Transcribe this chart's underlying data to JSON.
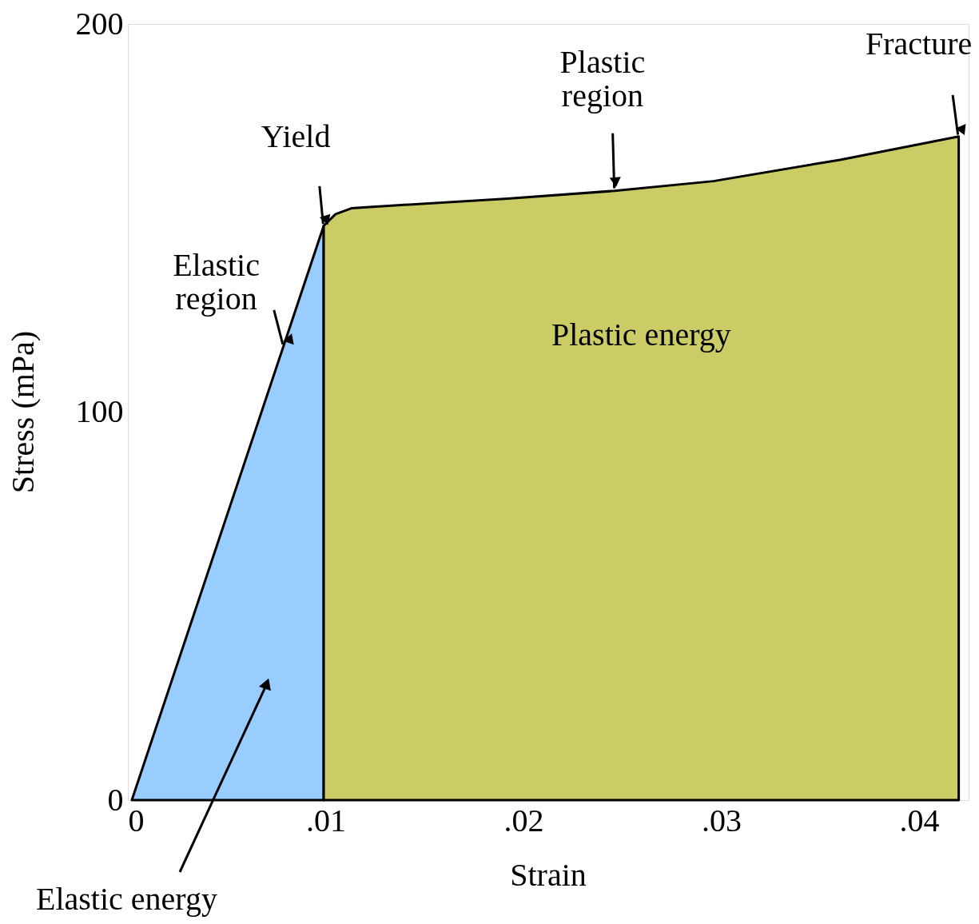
{
  "chart_data": {
    "type": "area",
    "xlabel": "Strain",
    "ylabel": "Stress (mPa)",
    "xlim": [
      0,
      0.0425
    ],
    "ylim": [
      0,
      200
    ],
    "xticks": [
      0,
      {
        "value": 0.01,
        "label": ".01"
      },
      {
        "value": 0.02,
        "label": ".02"
      },
      {
        "value": 0.03,
        "label": ".03"
      },
      {
        "value": 0.04,
        "label": ".04"
      }
    ],
    "yticks": [
      0,
      100,
      200
    ],
    "grid": false,
    "series": [
      {
        "name": "Elastic energy",
        "color": "#99ccff",
        "x": [
          0.0002,
          0.0099
        ],
        "values": [
          0,
          148
        ]
      },
      {
        "name": "Plastic energy",
        "color": "#cccc66",
        "x": [
          0.0099,
          0.0105,
          0.0113,
          0.0127,
          0.0192,
          0.0246,
          0.0296,
          0.036,
          0.042
        ],
        "values": [
          148,
          151,
          152.5,
          153,
          155,
          157,
          159.5,
          165,
          171
        ]
      }
    ],
    "annotations": [
      {
        "text": "Yield",
        "x": 0.0099,
        "y": 148
      },
      {
        "text": "Elastic region",
        "x": 0.0079,
        "y": 117
      },
      {
        "text": "Plastic region",
        "x": 0.0246,
        "y": 157
      },
      {
        "text": "Fracture",
        "x": 0.042,
        "y": 171
      }
    ]
  }
}
